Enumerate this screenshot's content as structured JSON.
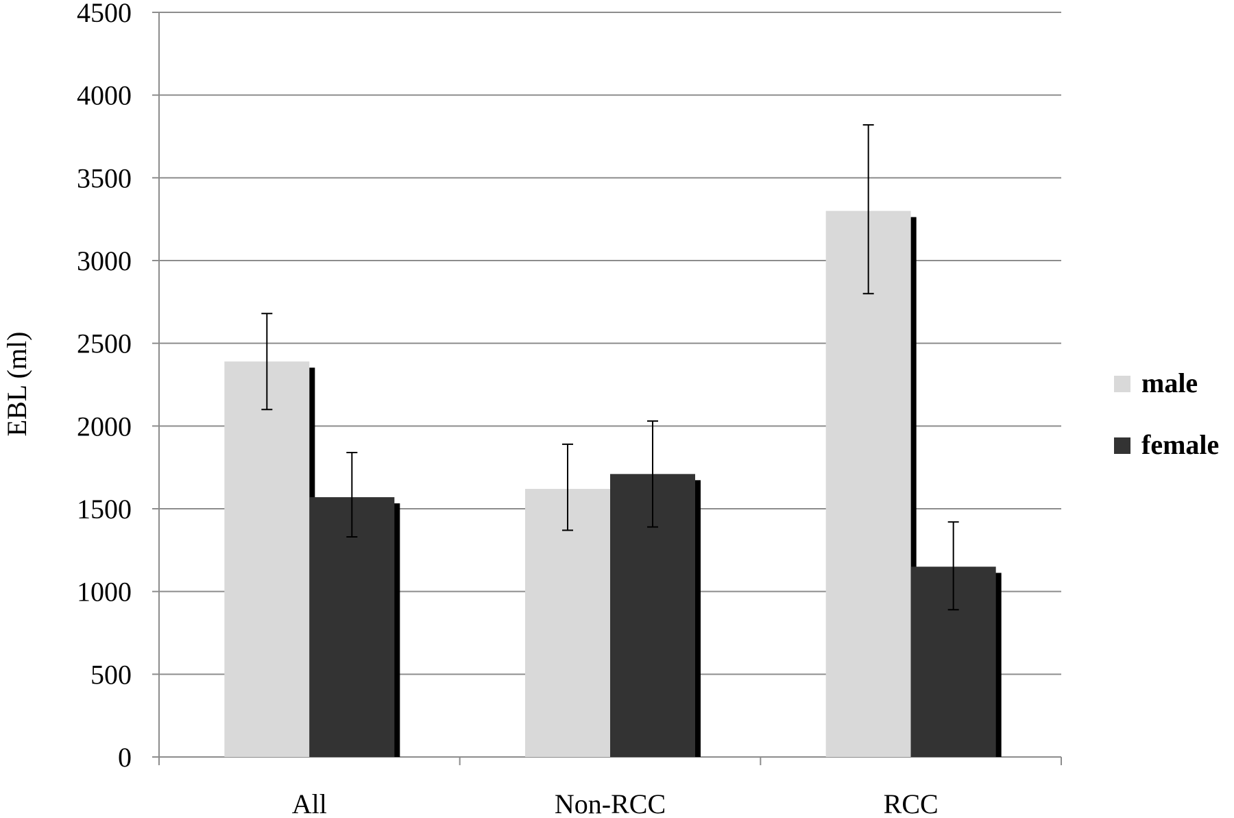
{
  "chart_data": {
    "type": "bar",
    "title": "",
    "xlabel": "",
    "ylabel": "EBL (ml)",
    "ylim": [
      0,
      4500
    ],
    "yticks": [
      0,
      500,
      1000,
      1500,
      2000,
      2500,
      3000,
      3500,
      4000,
      4500
    ],
    "categories": [
      "All",
      "Non-RCC",
      "RCC"
    ],
    "series": [
      {
        "name": "male",
        "color": "#d9d9d9",
        "values": [
          2390,
          1620,
          3300
        ],
        "error_low": [
          2100,
          1370,
          2800
        ],
        "error_high": [
          2680,
          1890,
          3820
        ]
      },
      {
        "name": "female",
        "color": "#333333",
        "values": [
          1570,
          1710,
          1150
        ],
        "error_low": [
          1330,
          1390,
          890
        ],
        "error_high": [
          1840,
          2030,
          1420
        ]
      }
    ],
    "grid": true,
    "legend_position": "right"
  }
}
